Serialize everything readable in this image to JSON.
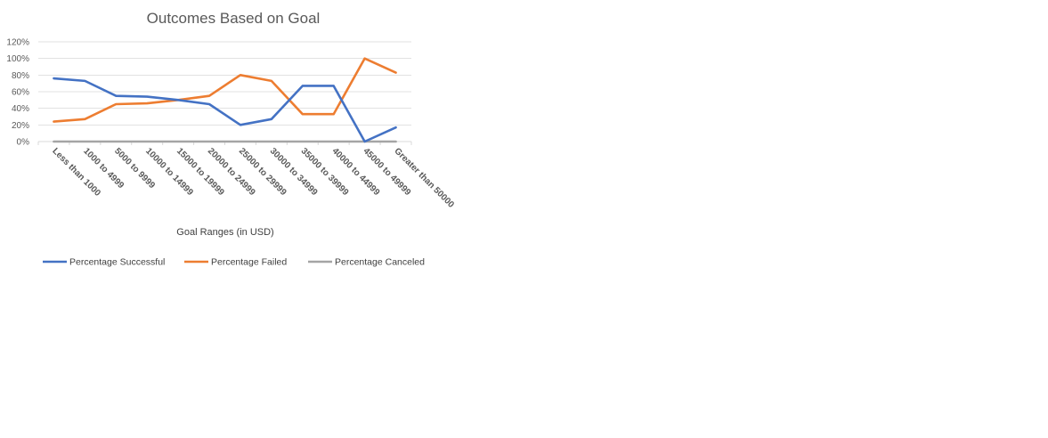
{
  "colors": {
    "successful": "#4472C4",
    "failed": "#ED7D31",
    "canceled": "#A5A5A5",
    "grid": "#D9D9D9",
    "text": "#595959"
  },
  "chart_data": {
    "type": "line",
    "title": "Outcomes Based on Goal",
    "xlabel": "Goal Ranges (in USD)",
    "ylabel": "",
    "ylim": [
      0,
      1.2
    ],
    "y_ticks": [
      {
        "value": 1.2,
        "label": "120%"
      },
      {
        "value": 1.0,
        "label": "100%"
      },
      {
        "value": 0.8,
        "label": "80%"
      },
      {
        "value": 0.6,
        "label": "60%"
      },
      {
        "value": 0.4,
        "label": "40%"
      },
      {
        "value": 0.2,
        "label": "20%"
      },
      {
        "value": 0.0,
        "label": "0%"
      }
    ],
    "grid": true,
    "legend_position": "bottom",
    "categories": [
      "Less than 1000",
      "1000 to 4999",
      "5000 to 9999",
      "10000 to 14999",
      "15000 to 19999",
      "20000 to 24999",
      "25000 to 29999",
      "30000 to 34999",
      "35000 to 39999",
      "40000 to 44999",
      "45000 to 49999",
      "Greater than 50000"
    ],
    "series": [
      {
        "name": "Percentage Successful",
        "color_key": "successful",
        "values": [
          0.76,
          0.73,
          0.55,
          0.54,
          0.5,
          0.45,
          0.2,
          0.27,
          0.67,
          0.67,
          0.0,
          0.17
        ]
      },
      {
        "name": "Percentage Failed",
        "color_key": "failed",
        "values": [
          0.24,
          0.27,
          0.45,
          0.46,
          0.5,
          0.55,
          0.8,
          0.73,
          0.33,
          0.33,
          1.0,
          0.83
        ]
      },
      {
        "name": "Percentage Canceled",
        "color_key": "canceled",
        "values": [
          0,
          0,
          0,
          0,
          0,
          0,
          0,
          0,
          0,
          0,
          0,
          0
        ]
      }
    ]
  }
}
